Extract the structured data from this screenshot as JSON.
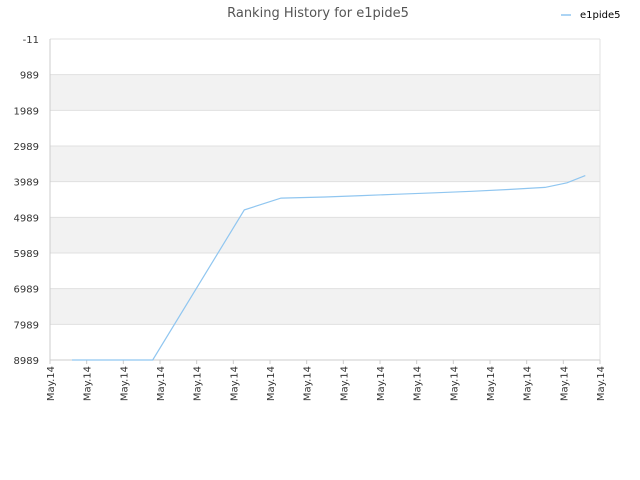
{
  "chart_data": {
    "type": "line",
    "title": "Ranking History for e1pide5",
    "xlabel": "",
    "ylabel": "",
    "y_inverted": true,
    "ylim": [
      -11,
      8989
    ],
    "y_ticks": [
      "-11",
      "989",
      "1989",
      "2989",
      "3989",
      "4989",
      "5989",
      "6989",
      "7989",
      "8989"
    ],
    "x_ticks": [
      "May.14",
      "May.14",
      "May.14",
      "May.14",
      "May.14",
      "May.14",
      "May.14",
      "May.14",
      "May.14",
      "May.14",
      "May.14",
      "May.14",
      "May.14",
      "May.14",
      "May.14",
      "May.14"
    ],
    "x_range": [
      0,
      15
    ],
    "grid": true,
    "legend_position": "top-right",
    "colors": {
      "line": "#90c6f0",
      "band": "#f2f2f2",
      "gridline": "#e0e0e0",
      "axis": "#cccccc"
    },
    "series": [
      {
        "name": "e1pide5",
        "x": [
          0.6,
          1.8,
          2.8,
          5.3,
          6.3,
          7.5,
          8.5,
          9.5,
          10.5,
          11.5,
          12.5,
          13.5,
          14.1,
          14.6
        ],
        "values": [
          8989,
          8989,
          8989,
          4780,
          4450,
          4420,
          4380,
          4340,
          4300,
          4260,
          4210,
          4150,
          4020,
          3820
        ]
      }
    ]
  }
}
